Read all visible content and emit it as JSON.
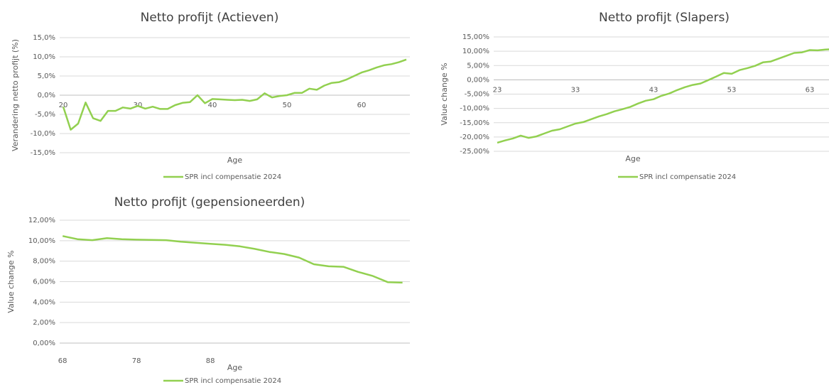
{
  "chart_data": [
    {
      "type": "line",
      "title": "Netto profijt (Actieven)",
      "x_label": "Age",
      "y_label": "Verandering netto profijt (%)",
      "x": [
        20,
        21,
        22,
        23,
        24,
        25,
        26,
        27,
        28,
        29,
        30,
        31,
        32,
        33,
        34,
        35,
        36,
        37,
        38,
        39,
        40,
        41,
        42,
        43,
        44,
        45,
        46,
        47,
        48,
        49,
        50,
        51,
        52,
        53,
        54,
        55,
        56,
        57,
        58,
        59,
        60,
        61,
        62,
        63,
        64,
        65,
        66
      ],
      "series": [
        {
          "name": "SPR incl compensatie 2024",
          "color": "#92d050",
          "values": [
            -3.0,
            -9.0,
            -7.4,
            -1.9,
            -6.0,
            -6.7,
            -4.1,
            -4.1,
            -3.2,
            -3.5,
            -2.8,
            -3.5,
            -3.0,
            -3.6,
            -3.6,
            -2.6,
            -2.0,
            -1.8,
            0.0,
            -2.1,
            -1.0,
            -1.1,
            -1.2,
            -1.3,
            -1.2,
            -1.5,
            -1.1,
            0.5,
            -0.6,
            -0.2,
            0.0,
            0.6,
            0.6,
            1.7,
            1.4,
            2.5,
            3.2,
            3.4,
            4.1,
            5.0,
            5.9,
            6.5,
            7.2,
            7.8,
            8.1,
            8.6,
            9.3
          ]
        }
      ],
      "xlim": [
        19.52,
        66.48
      ],
      "xticks": [
        20,
        30,
        40,
        50,
        60
      ],
      "ylim": [
        -15,
        15
      ],
      "yticks": [
        {
          "value": 15,
          "label": "15,0%"
        },
        {
          "value": 10,
          "label": "10,0%"
        },
        {
          "value": 5,
          "label": "5,0%"
        },
        {
          "value": 0,
          "label": "0,0%"
        },
        {
          "value": -5,
          "label": "-5,0%"
        },
        {
          "value": -10,
          "label": "-10,0%"
        },
        {
          "value": -15,
          "label": "-15,0%"
        }
      ],
      "grid": true
    },
    {
      "type": "line",
      "title": "Netto profijt (Slapers)",
      "x_label": "Age",
      "y_label": "Value change %",
      "x": [
        23,
        24,
        25,
        26,
        27,
        28,
        29,
        30,
        31,
        32,
        33,
        34,
        35,
        36,
        37,
        38,
        39,
        40,
        41,
        42,
        43,
        44,
        45,
        46,
        47,
        48,
        49,
        50,
        51,
        52,
        53,
        54,
        55,
        56,
        57,
        58,
        59,
        60,
        61,
        62,
        63,
        64,
        65,
        66
      ],
      "series": [
        {
          "name": "SPR incl compensatie 2024",
          "color": "#92d050",
          "values": [
            -22.0,
            -21.2,
            -20.5,
            -19.5,
            -20.3,
            -19.8,
            -18.8,
            -17.8,
            -17.3,
            -16.3,
            -15.3,
            -14.8,
            -13.8,
            -12.8,
            -12.0,
            -11.0,
            -10.3,
            -9.5,
            -8.3,
            -7.3,
            -6.8,
            -5.6,
            -4.8,
            -3.6,
            -2.6,
            -1.8,
            -1.3,
            -0.1,
            1.1,
            2.4,
            2.1,
            3.4,
            4.1,
            4.9,
            6.1,
            6.4,
            7.4,
            8.4,
            9.4,
            9.6,
            10.4,
            10.3,
            10.6,
            10.7
          ]
        }
      ],
      "xlim": [
        22.55,
        65.45
      ],
      "xticks": [
        23,
        33,
        43,
        53,
        63
      ],
      "ylim": [
        -25,
        15
      ],
      "yticks": [
        {
          "value": 15,
          "label": "15,00%"
        },
        {
          "value": 10,
          "label": "10,00%"
        },
        {
          "value": 5,
          "label": "5,00%"
        },
        {
          "value": 0,
          "label": "0,00%"
        },
        {
          "value": -5,
          "label": "-5,00%"
        },
        {
          "value": -10,
          "label": "-10,00%"
        },
        {
          "value": -15,
          "label": "-15,00%"
        },
        {
          "value": -20,
          "label": "-20,00%"
        },
        {
          "value": -25,
          "label": "-25,00%"
        }
      ],
      "grid": true
    },
    {
      "type": "line",
      "title": "Netto profijt (gepensioneerden)",
      "x_label": "Age",
      "y_label": "Value change %",
      "x": [
        68,
        70,
        72,
        74,
        76,
        78,
        80,
        82,
        84,
        86,
        88,
        90,
        92,
        94,
        96,
        98,
        100,
        102,
        104,
        106,
        108,
        110,
        112,
        114
      ],
      "series": [
        {
          "name": "SPR incl compensatie 2024",
          "color": "#92d050",
          "values": [
            10.45,
            10.15,
            10.05,
            10.25,
            10.15,
            10.1,
            10.08,
            10.05,
            9.9,
            9.8,
            9.7,
            9.6,
            9.45,
            9.2,
            8.9,
            8.7,
            8.35,
            7.7,
            7.5,
            7.45,
            6.95,
            6.55,
            5.95,
            5.9
          ]
        }
      ],
      "xlim": [
        67.6,
        115
      ],
      "xticks": [
        68,
        78,
        88
      ],
      "ylim": [
        0,
        12
      ],
      "yticks": [
        {
          "value": 12,
          "label": "12,00%"
        },
        {
          "value": 10,
          "label": "10,00%"
        },
        {
          "value": 8,
          "label": "8,00%"
        },
        {
          "value": 6,
          "label": "6,00%"
        },
        {
          "value": 4,
          "label": "4,00%"
        },
        {
          "value": 2,
          "label": "2,00%"
        },
        {
          "value": 0,
          "label": "0,00%"
        }
      ],
      "grid": true
    }
  ]
}
